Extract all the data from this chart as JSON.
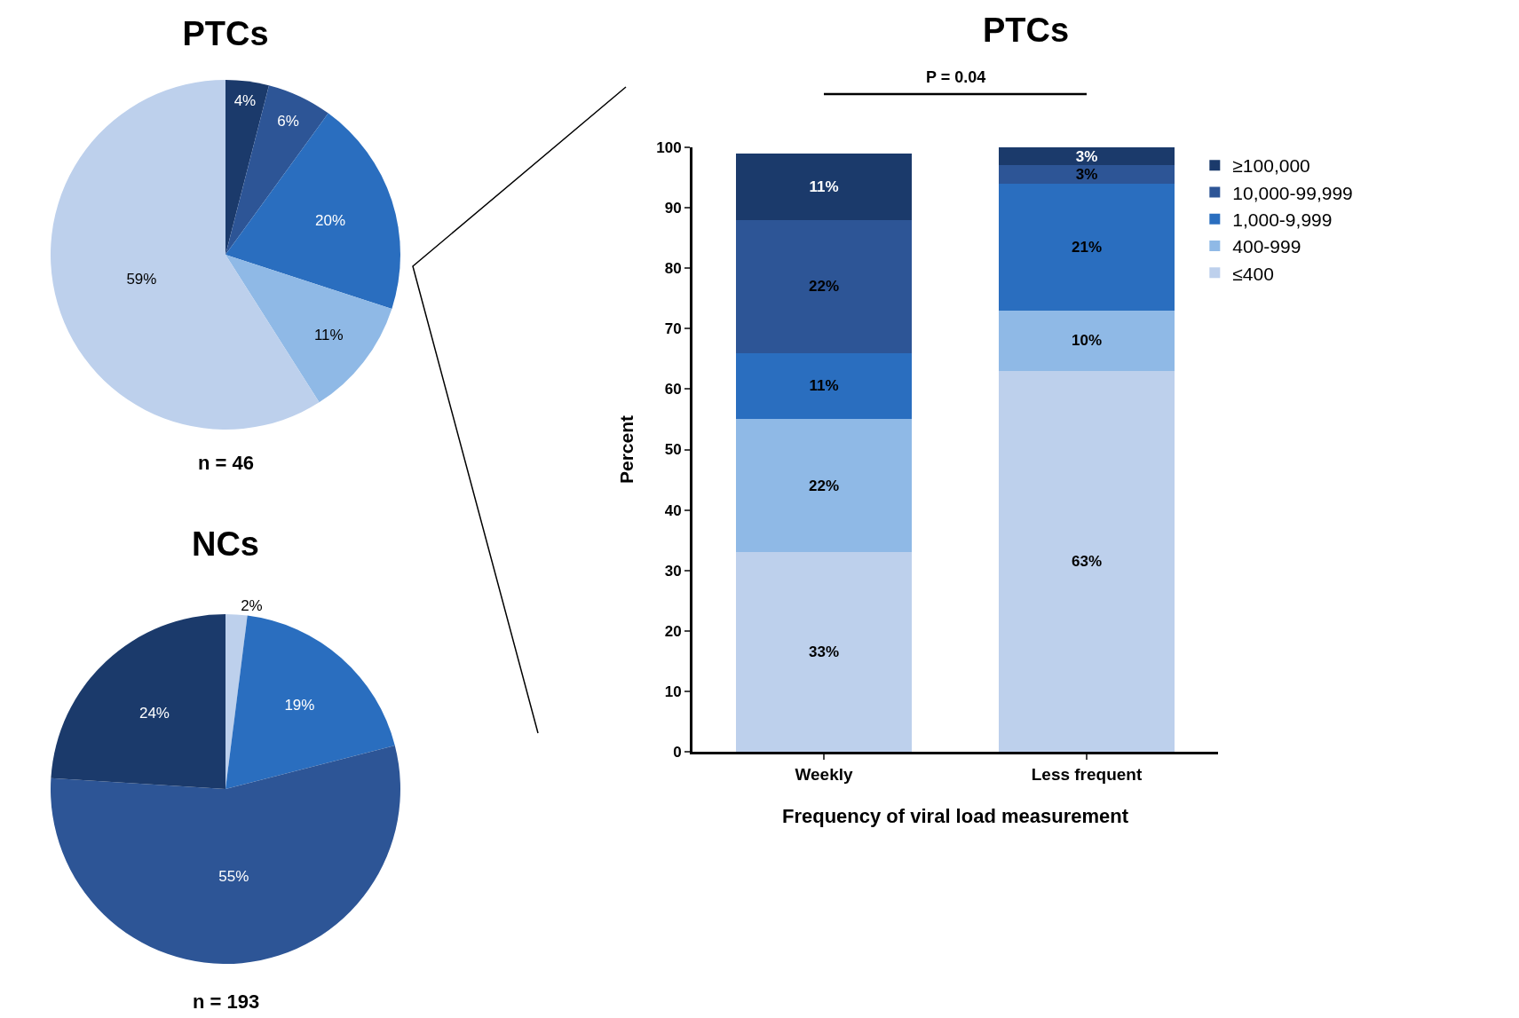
{
  "chart_data": [
    {
      "type": "pie",
      "title": "PTCs",
      "categories": [
        null,
        null,
        null,
        null,
        null
      ],
      "values": [
        4,
        6,
        20,
        11,
        59
      ],
      "value_labels": [
        "4%",
        "6%",
        "20%",
        "11%",
        "59%"
      ],
      "colors": [
        "#1b3a6b",
        "#2d5596",
        "#2a6ebf",
        "#8fb9e6",
        "#bdd0ec"
      ],
      "annotations": [
        "n = 46"
      ]
    },
    {
      "type": "pie",
      "title": "NCs",
      "categories": [
        null,
        null,
        null,
        null
      ],
      "values": [
        2,
        19,
        55,
        24
      ],
      "value_labels": [
        "2%",
        "19%",
        "55%",
        "24%"
      ],
      "colors": [
        "#bdd0ec",
        "#2a6ebf",
        "#2d5596",
        "#1b3a6b"
      ],
      "annotations": [
        "n = 193"
      ]
    },
    {
      "type": "bar",
      "title": "PTCs",
      "stacked": true,
      "categories": [
        "Weekly",
        "Less frequent"
      ],
      "xlabel": "Frequency of viral load measurement",
      "ylabel": "Percent",
      "ylim": [
        0,
        100
      ],
      "yticks": [
        0,
        10,
        20,
        30,
        40,
        50,
        60,
        70,
        80,
        90,
        100
      ],
      "grid": false,
      "legend": "top right",
      "series": [
        {
          "name": "≤400",
          "color": "#bdd0ec",
          "values": [
            33,
            63
          ],
          "value_labels": [
            "33%",
            "63%"
          ]
        },
        {
          "name": "400-999",
          "color": "#8fb9e6",
          "values": [
            22,
            10
          ],
          "value_labels": [
            "22%",
            "10%"
          ]
        },
        {
          "name": "1,000-9,999",
          "color": "#2a6ebf",
          "values": [
            11,
            21
          ],
          "value_labels": [
            "11%",
            "21%"
          ]
        },
        {
          "name": "10,000-99,999",
          "color": "#2d5596",
          "values": [
            22,
            3
          ],
          "value_labels": [
            "22%",
            "3%"
          ]
        },
        {
          "name": "≥100,000",
          "color": "#1b3a6b",
          "values": [
            11,
            3
          ],
          "value_labels": [
            "11%",
            "3%"
          ]
        }
      ],
      "annotations": [
        "P = 0.04"
      ]
    }
  ]
}
